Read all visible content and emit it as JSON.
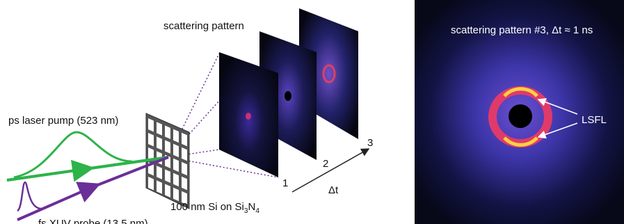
{
  "schematic": {
    "title": "scattering pattern",
    "pump_label": "ps laser pump (523 nm)",
    "probe_label": "fs XUV probe (13.5 nm)",
    "sample_label": [
      "100 nm Si on Si",
      "3",
      "N",
      "4"
    ],
    "pattern_numbers": [
      "1",
      "2",
      "3"
    ],
    "time_axis": "Δt"
  },
  "pattern_image": {
    "title": "scattering pattern #3, Δt ≈ 1 ns",
    "annotation": "LSFL"
  }
}
